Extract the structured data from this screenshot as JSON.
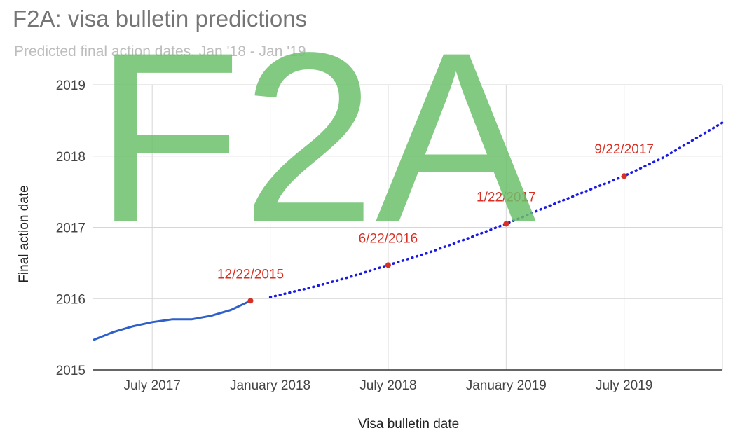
{
  "title": "F2A: visa bulletin predictions",
  "subtitle": "Predicted final action dates. Jan '18 -  Jan '19",
  "watermark_text": "F2A",
  "colors": {
    "actual_line": "#2f5fc9",
    "predicted_line": "#1a1ae6",
    "point": "#d93025",
    "label": "#d93025",
    "grid": "#d6d6d6",
    "watermark": "#6cbf6c"
  },
  "chart_data": {
    "type": "line",
    "title": "F2A: visa bulletin predictions",
    "subtitle": "Predicted final action dates. Jan '18 -  Jan '19",
    "xlabel": "Visa bulletin date",
    "ylabel": "Final action date",
    "x_ticks": [
      "July 2017",
      "January 2018",
      "July 2018",
      "January 2019",
      "July 2019"
    ],
    "y_ticks": [
      "2015",
      "2016",
      "2017",
      "2018",
      "2019"
    ],
    "xlim": [
      "2017-04-01",
      "2019-12-01"
    ],
    "ylim": [
      2015,
      2019
    ],
    "grid": true,
    "legend": "none",
    "series": [
      {
        "style": "solid",
        "x": [
          "2017-04-01",
          "2017-05-01",
          "2017-06-01",
          "2017-07-01",
          "2017-08-01",
          "2017-09-01",
          "2017-10-01",
          "2017-11-01",
          "2017-12-01"
        ],
        "y": [
          2015.42,
          2015.53,
          2015.61,
          2015.67,
          2015.71,
          2015.71,
          2015.76,
          2015.84,
          2015.97
        ]
      },
      {
        "style": "dotted",
        "x": [
          "2018-01-01",
          "2018-03-01",
          "2018-05-01",
          "2018-07-01",
          "2018-09-01",
          "2018-11-01",
          "2019-01-01",
          "2019-03-01",
          "2019-05-01",
          "2019-07-01",
          "2019-09-01",
          "2019-12-01"
        ],
        "y": [
          2016.02,
          2016.15,
          2016.3,
          2016.47,
          2016.64,
          2016.84,
          2017.05,
          2017.28,
          2017.5,
          2017.72,
          2017.98,
          2018.47
        ]
      }
    ],
    "points": [
      {
        "x": "2017-12-01",
        "y": 2015.97,
        "label": "12/22/2015"
      },
      {
        "x": "2018-07-01",
        "y": 2016.47,
        "label": "6/22/2016"
      },
      {
        "x": "2019-01-01",
        "y": 2017.05,
        "label": "1/22/2017"
      },
      {
        "x": "2019-07-01",
        "y": 2017.72,
        "label": "9/22/2017"
      }
    ]
  }
}
